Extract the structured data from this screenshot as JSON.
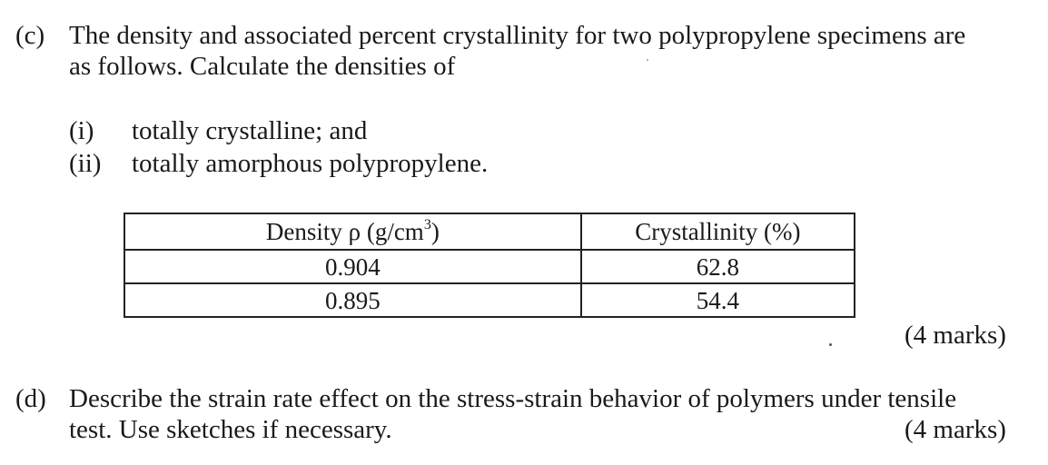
{
  "part_c": {
    "label": "(c)",
    "line1": "The density and associated percent crystallinity for two polypropylene specimens are",
    "line2": "as follows. Calculate the densities of",
    "items": [
      {
        "label": "(i)",
        "text": "totally crystalline; and"
      },
      {
        "label": "(ii)",
        "text": "totally amorphous polypropylene."
      }
    ],
    "table": {
      "header_density": "Density ρ (g/cm",
      "header_density_sup": "3",
      "header_density_close": ")",
      "header_crystallinity": "Crystallinity (%)",
      "rows": [
        {
          "density": "0.904",
          "crystallinity": "62.8"
        },
        {
          "density": "0.895",
          "crystallinity": "54.4"
        }
      ]
    },
    "marks": "(4 marks)"
  },
  "part_d": {
    "label": "(d)",
    "line1": "Describe the strain rate effect on the stress-strain behavior of polymers under tensile",
    "line2": "test. Use sketches if necessary.",
    "marks": "(4 marks)"
  }
}
